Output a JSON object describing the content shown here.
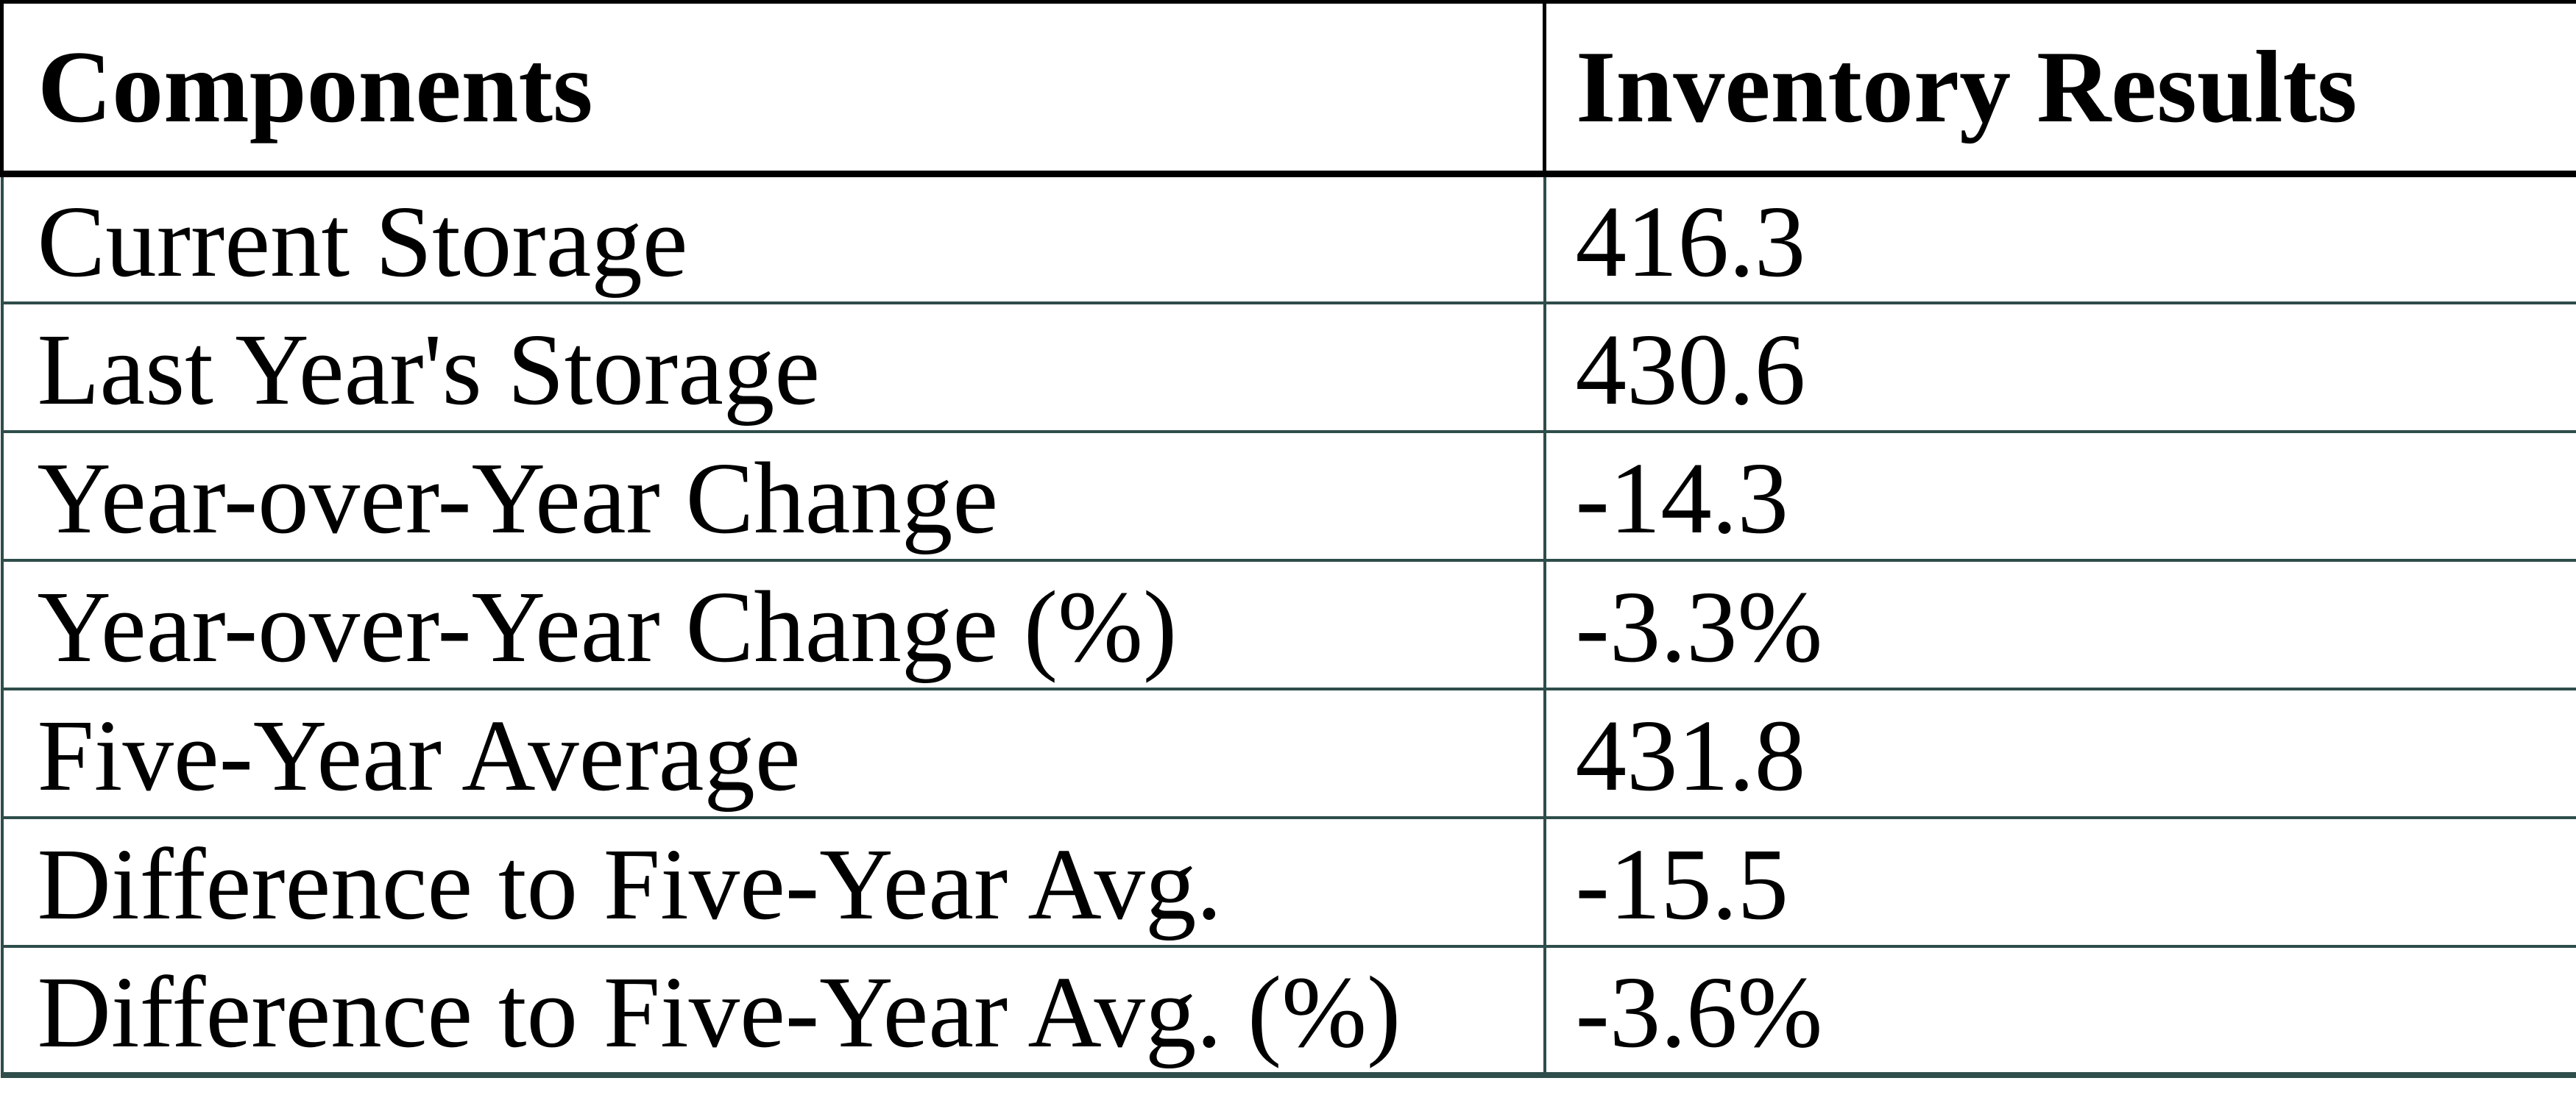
{
  "chart_data": {
    "type": "table",
    "columns": [
      "Components",
      "Inventory Results"
    ],
    "rows": [
      [
        "Current Storage",
        "416.3"
      ],
      [
        "Last Year's Storage",
        "430.6"
      ],
      [
        "Year-over-Year Change",
        "-14.3"
      ],
      [
        "Year-over-Year Change (%)",
        "-3.3%"
      ],
      [
        "Five-Year Average",
        "431.8"
      ],
      [
        "Difference to Five-Year Avg.",
        "-15.5"
      ],
      [
        "Difference to Five-Year Avg. (%)",
        "-3.6%"
      ]
    ]
  },
  "colors": {
    "header_border": "#000000",
    "grid_border": "#2e4d4b",
    "text": "#000000",
    "background": "#ffffff"
  }
}
